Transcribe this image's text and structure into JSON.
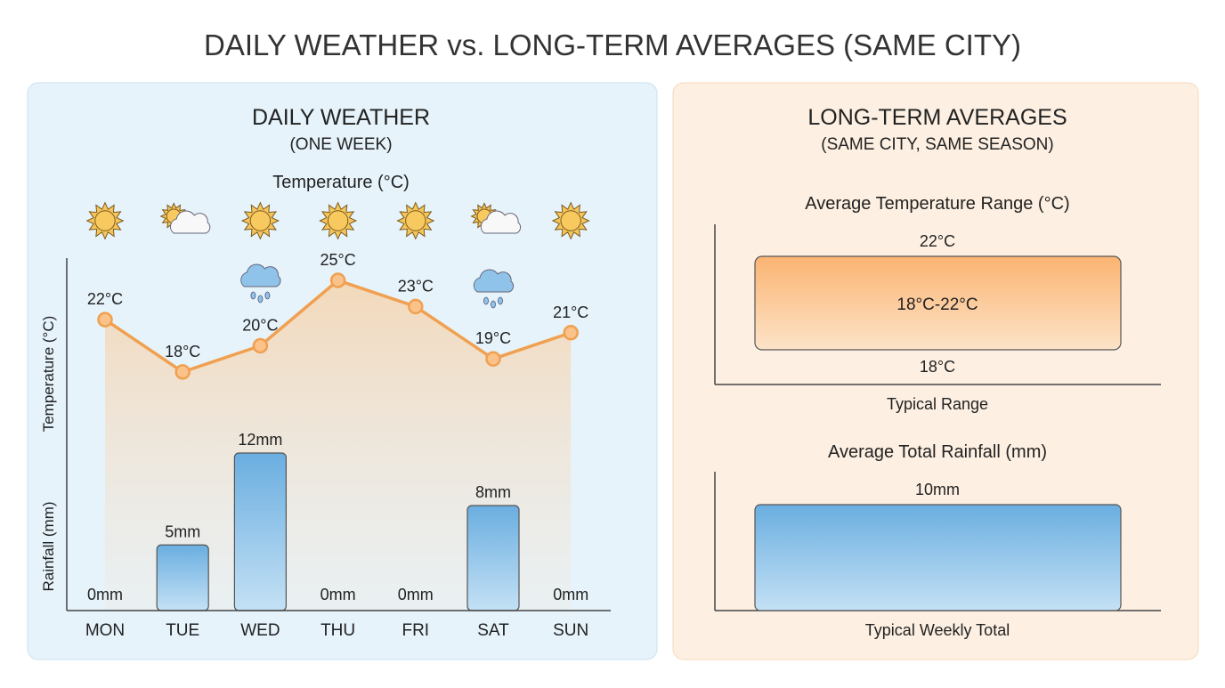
{
  "title": "DAILY WEATHER vs. LONG-TERM AVERAGES (SAME CITY)",
  "colors": {
    "temperature": "#f0a050",
    "rainfall": "#6aaee0",
    "left_panel": "#e6f3fb",
    "right_panel": "#fdf0e2"
  },
  "chart_data": [
    {
      "type": "line+bar",
      "title": "DAILY WEATHER",
      "subtitle": "(ONE WEEK)",
      "temp_title": "Temperature (°C)",
      "ylabel_temp": "Temperature (°C)",
      "ylabel_rain": "Rainfall (mm)",
      "categories": [
        "MON",
        "TUE",
        "WED",
        "THU",
        "FRI",
        "SAT",
        "SUN"
      ],
      "conditions": [
        "sunny",
        "partly-cloudy",
        "sunny",
        "sunny",
        "sunny",
        "partly-cloudy",
        "sunny"
      ],
      "rain_icons": [
        "",
        "",
        "rain-cloud",
        "",
        "",
        "rain-cloud",
        ""
      ],
      "temperature": [
        22,
        18,
        20,
        25,
        23,
        19,
        21
      ],
      "temperature_labels": [
        "22°C",
        "18°C",
        "20°C",
        "25°C",
        "23°C",
        "19°C",
        "21°C"
      ],
      "rainfall": [
        0,
        5,
        12,
        0,
        0,
        8,
        0
      ],
      "rainfall_labels": [
        "0mm",
        "5mm",
        "12mm",
        "0mm",
        "0mm",
        "8mm",
        "0mm"
      ]
    },
    {
      "type": "range-bar",
      "title": "LONG-TERM AVERAGES",
      "subtitle": "(SAME CITY, SAME SEASON)",
      "temp_title": "Average Temperature Range (°C)",
      "temp_range": [
        18,
        22
      ],
      "temp_high_label": "22°C",
      "temp_low_label": "18°C",
      "temp_range_label": "18°C-22°C",
      "temp_xlabel": "Typical Range",
      "rain_title": "Average Total Rainfall (mm)",
      "rain_value": 10,
      "rain_label": "10mm",
      "rain_xlabel": "Typical Weekly Total"
    }
  ]
}
